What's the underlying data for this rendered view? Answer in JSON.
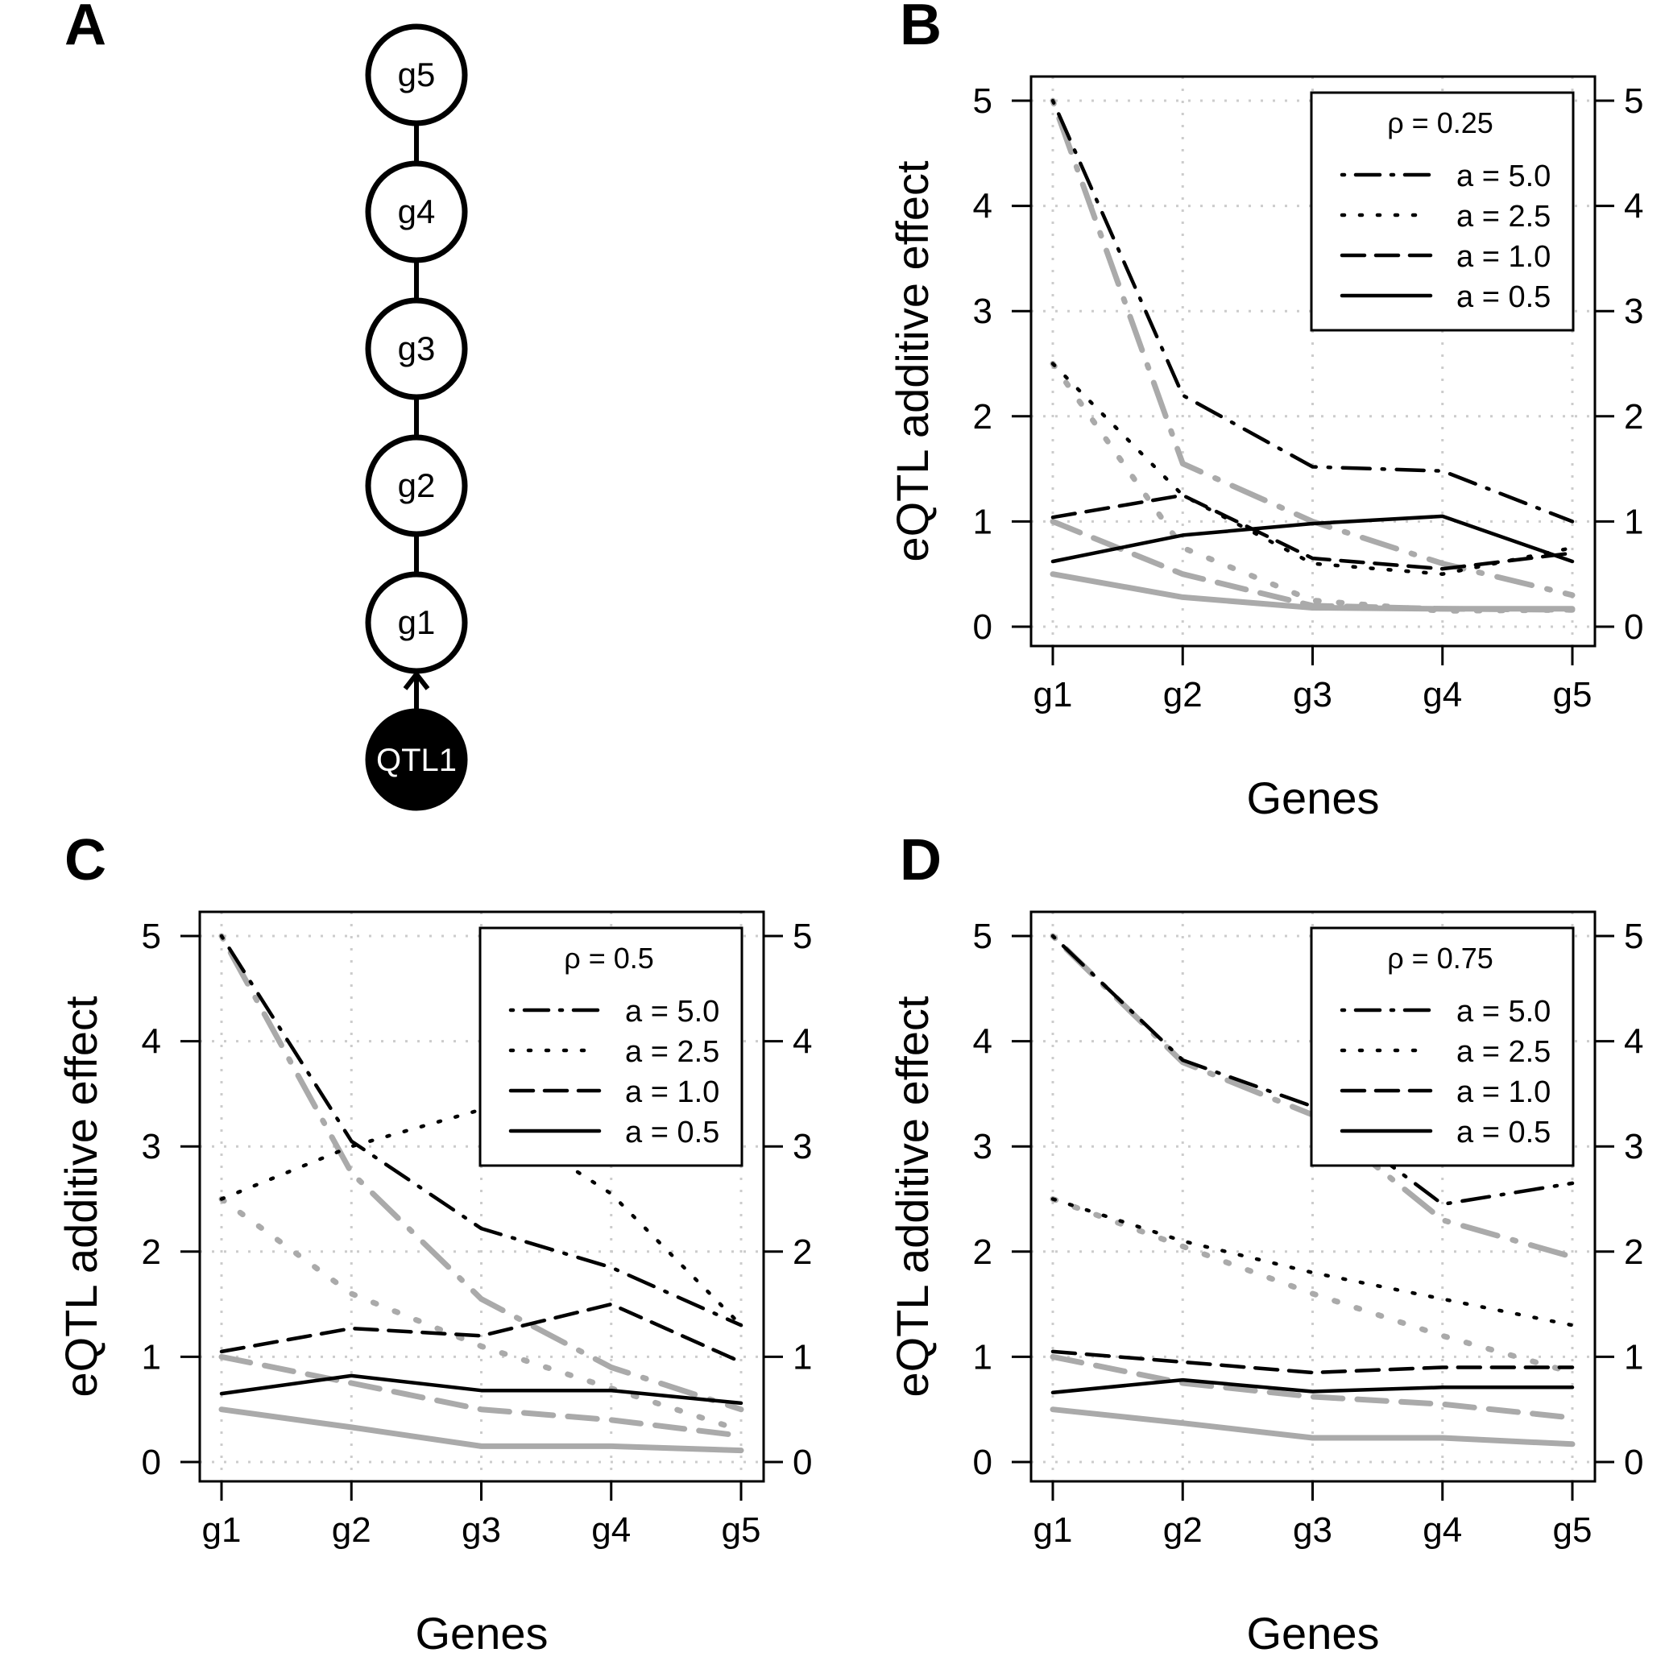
{
  "panel_labels": [
    "A",
    "B",
    "C",
    "D"
  ],
  "diagram": {
    "nodes": [
      {
        "id": "g5",
        "label": "g5",
        "kind": "gene"
      },
      {
        "id": "g4",
        "label": "g4",
        "kind": "gene"
      },
      {
        "id": "g3",
        "label": "g3",
        "kind": "gene"
      },
      {
        "id": "g2",
        "label": "g2",
        "kind": "gene"
      },
      {
        "id": "g1",
        "label": "g1",
        "kind": "gene"
      },
      {
        "id": "QTL1",
        "label": "QTL1",
        "kind": "qtl"
      }
    ],
    "edges": [
      {
        "from": "g5",
        "to": "g4",
        "directed": false
      },
      {
        "from": "g4",
        "to": "g3",
        "directed": false
      },
      {
        "from": "g3",
        "to": "g2",
        "directed": false
      },
      {
        "from": "g2",
        "to": "g1",
        "directed": false
      },
      {
        "from": "QTL1",
        "to": "g1",
        "directed": true
      }
    ]
  },
  "colors": {
    "estimated": "#000000",
    "true": "#aaaaaa",
    "grid": "#cccccc",
    "qtl_fill": "#000000"
  },
  "chart_data": [
    {
      "panel": "B",
      "type": "line",
      "rho_label": "ρ = 0.25",
      "xlabel": "Genes",
      "ylabel": "eQTL additive effect",
      "categories": [
        "g1",
        "g2",
        "g3",
        "g4",
        "g5"
      ],
      "ylim": [
        0,
        5
      ],
      "yticks": [
        0,
        1,
        2,
        3,
        4,
        5
      ],
      "grid": true,
      "legend": {
        "position": "top-right",
        "entries": [
          "a = 5.0",
          "a = 2.5",
          "a = 1.0",
          "a = 0.5"
        ]
      },
      "series": [
        {
          "name": "a = 5.0",
          "style": "dotdash",
          "estimated": [
            5.0,
            2.2,
            1.52,
            1.48,
            1.0
          ],
          "true": [
            5.0,
            1.55,
            1.0,
            0.6,
            0.3
          ]
        },
        {
          "name": "a = 2.5",
          "style": "dotted",
          "estimated": [
            2.5,
            1.25,
            0.6,
            0.5,
            0.75
          ],
          "true": [
            2.5,
            0.75,
            0.25,
            0.15,
            0.16
          ]
        },
        {
          "name": "a = 1.0",
          "style": "dashed",
          "estimated": [
            1.04,
            1.25,
            0.65,
            0.55,
            0.7
          ],
          "true": [
            1.0,
            0.5,
            0.2,
            0.17,
            0.16
          ]
        },
        {
          "name": "a = 0.5",
          "style": "solid",
          "estimated": [
            0.62,
            0.87,
            0.98,
            1.05,
            0.62
          ],
          "true": [
            0.5,
            0.28,
            0.18,
            0.17,
            0.17
          ]
        }
      ]
    },
    {
      "panel": "C",
      "type": "line",
      "rho_label": "ρ = 0.5",
      "xlabel": "Genes",
      "ylabel": "eQTL additive effect",
      "categories": [
        "g1",
        "g2",
        "g3",
        "g4",
        "g5"
      ],
      "ylim": [
        0,
        5
      ],
      "yticks": [
        0,
        1,
        2,
        3,
        4,
        5
      ],
      "grid": true,
      "legend": {
        "position": "top-right",
        "entries": [
          "a = 5.0",
          "a = 2.5",
          "a = 1.0",
          "a = 0.5"
        ]
      },
      "series": [
        {
          "name": "a = 5.0",
          "style": "dotdash",
          "estimated": [
            5.0,
            3.05,
            2.22,
            1.85,
            1.3
          ],
          "true": [
            5.0,
            2.75,
            1.55,
            0.9,
            0.5
          ]
        },
        {
          "name": "a = 2.5",
          "style": "dotted",
          "estimated": [
            2.5,
            3.0,
            3.35,
            2.55,
            1.3
          ],
          "true": [
            2.5,
            1.6,
            1.1,
            0.7,
            0.3
          ]
        },
        {
          "name": "a = 1.0",
          "style": "dashed",
          "estimated": [
            1.05,
            1.27,
            1.2,
            1.5,
            0.95
          ],
          "true": [
            1.0,
            0.75,
            0.5,
            0.4,
            0.25
          ]
        },
        {
          "name": "a = 0.5",
          "style": "solid",
          "estimated": [
            0.65,
            0.82,
            0.68,
            0.68,
            0.56
          ],
          "true": [
            0.5,
            0.33,
            0.15,
            0.15,
            0.11
          ]
        }
      ]
    },
    {
      "panel": "D",
      "type": "line",
      "rho_label": "ρ = 0.75",
      "xlabel": "Genes",
      "ylabel": "eQTL additive effect",
      "categories": [
        "g1",
        "g2",
        "g3",
        "g4",
        "g5"
      ],
      "ylim": [
        0,
        5
      ],
      "yticks": [
        0,
        1,
        2,
        3,
        4,
        5
      ],
      "grid": true,
      "legend": {
        "position": "top-right",
        "entries": [
          "a = 5.0",
          "a = 2.5",
          "a = 1.0",
          "a = 0.5"
        ]
      },
      "series": [
        {
          "name": "a = 5.0",
          "style": "dotdash",
          "estimated": [
            5.0,
            3.82,
            3.38,
            2.45,
            2.65
          ],
          "true": [
            5.0,
            3.8,
            3.3,
            2.3,
            1.95
          ]
        },
        {
          "name": "a = 2.5",
          "style": "dotted",
          "estimated": [
            2.5,
            2.1,
            1.8,
            1.55,
            1.3
          ],
          "true": [
            2.5,
            2.05,
            1.6,
            1.2,
            0.85
          ]
        },
        {
          "name": "a = 1.0",
          "style": "dashed",
          "estimated": [
            1.05,
            0.95,
            0.85,
            0.9,
            0.9
          ],
          "true": [
            1.0,
            0.75,
            0.62,
            0.55,
            0.42
          ]
        },
        {
          "name": "a = 0.5",
          "style": "solid",
          "estimated": [
            0.66,
            0.78,
            0.67,
            0.71,
            0.71
          ],
          "true": [
            0.5,
            0.37,
            0.23,
            0.23,
            0.17
          ]
        }
      ]
    }
  ]
}
